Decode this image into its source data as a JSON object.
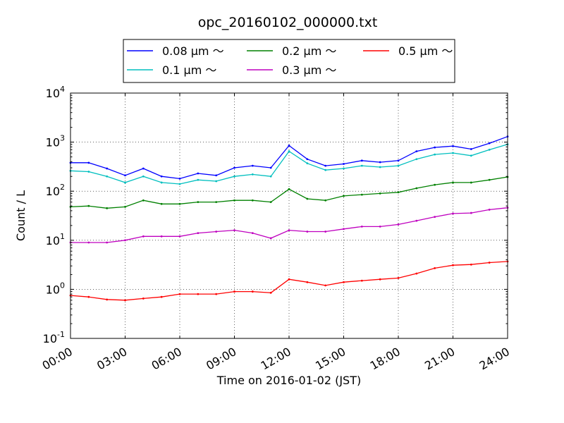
{
  "chart_data": {
    "type": "line",
    "title": "opc_20160102_000000.txt",
    "xlabel": "Time on 2016-01-02 (JST)",
    "ylabel": "Count / L",
    "yscale": "log",
    "ylim": [
      0.1,
      10000
    ],
    "xlim": [
      "2016-01-02T00:00",
      "2016-01-03T00:00"
    ],
    "grid": true,
    "legend_position": "top-center",
    "xticks": [
      "00:00",
      "03:00",
      "06:00",
      "09:00",
      "12:00",
      "15:00",
      "18:00",
      "21:00",
      "24:00"
    ],
    "yticks": [
      {
        "value": 0.1,
        "base": "10",
        "exp": "-1"
      },
      {
        "value": 1,
        "base": "10",
        "exp": "0"
      },
      {
        "value": 10,
        "base": "10",
        "exp": "1"
      },
      {
        "value": 100,
        "base": "10",
        "exp": "2"
      },
      {
        "value": 1000,
        "base": "10",
        "exp": "3"
      },
      {
        "value": 10000,
        "base": "10",
        "exp": "4"
      }
    ],
    "x": [
      "00:00",
      "01:00",
      "02:00",
      "03:00",
      "04:00",
      "05:00",
      "06:00",
      "07:00",
      "08:00",
      "09:00",
      "10:00",
      "11:00",
      "12:00",
      "13:00",
      "14:00",
      "15:00",
      "16:00",
      "17:00",
      "18:00",
      "19:00",
      "20:00",
      "21:00",
      "22:00",
      "23:00",
      "24:00"
    ],
    "series": [
      {
        "name": "0.08 μm ～",
        "color": "#0000ff",
        "values": [
          380,
          380,
          290,
          210,
          290,
          200,
          180,
          230,
          210,
          300,
          330,
          300,
          850,
          450,
          330,
          360,
          420,
          390,
          420,
          650,
          780,
          830,
          720,
          950,
          1300
        ]
      },
      {
        "name": "0.1 μm ～",
        "color": "#00bfbf",
        "values": [
          260,
          250,
          200,
          150,
          200,
          150,
          140,
          170,
          160,
          200,
          220,
          200,
          650,
          370,
          270,
          290,
          330,
          310,
          330,
          450,
          560,
          600,
          530,
          700,
          900
        ]
      },
      {
        "name": "0.2 μm ～",
        "color": "#008000",
        "values": [
          48,
          50,
          45,
          48,
          65,
          55,
          55,
          60,
          60,
          65,
          65,
          60,
          110,
          70,
          65,
          80,
          85,
          90,
          95,
          115,
          135,
          150,
          150,
          170,
          195
        ]
      },
      {
        "name": "0.3 μm ～",
        "color": "#bf00bf",
        "values": [
          9,
          9,
          9,
          10,
          12,
          12,
          12,
          14,
          15,
          16,
          14,
          11,
          16,
          15,
          15,
          17,
          19,
          19,
          21,
          25,
          30,
          35,
          36,
          42,
          46
        ]
      },
      {
        "name": "0.5 μm ～",
        "color": "#ff0000",
        "values": [
          0.75,
          0.7,
          0.62,
          0.6,
          0.65,
          0.7,
          0.8,
          0.8,
          0.8,
          0.9,
          0.9,
          0.85,
          1.6,
          1.4,
          1.2,
          1.4,
          1.5,
          1.6,
          1.7,
          2.1,
          2.7,
          3.1,
          3.2,
          3.5,
          3.7
        ]
      }
    ]
  }
}
